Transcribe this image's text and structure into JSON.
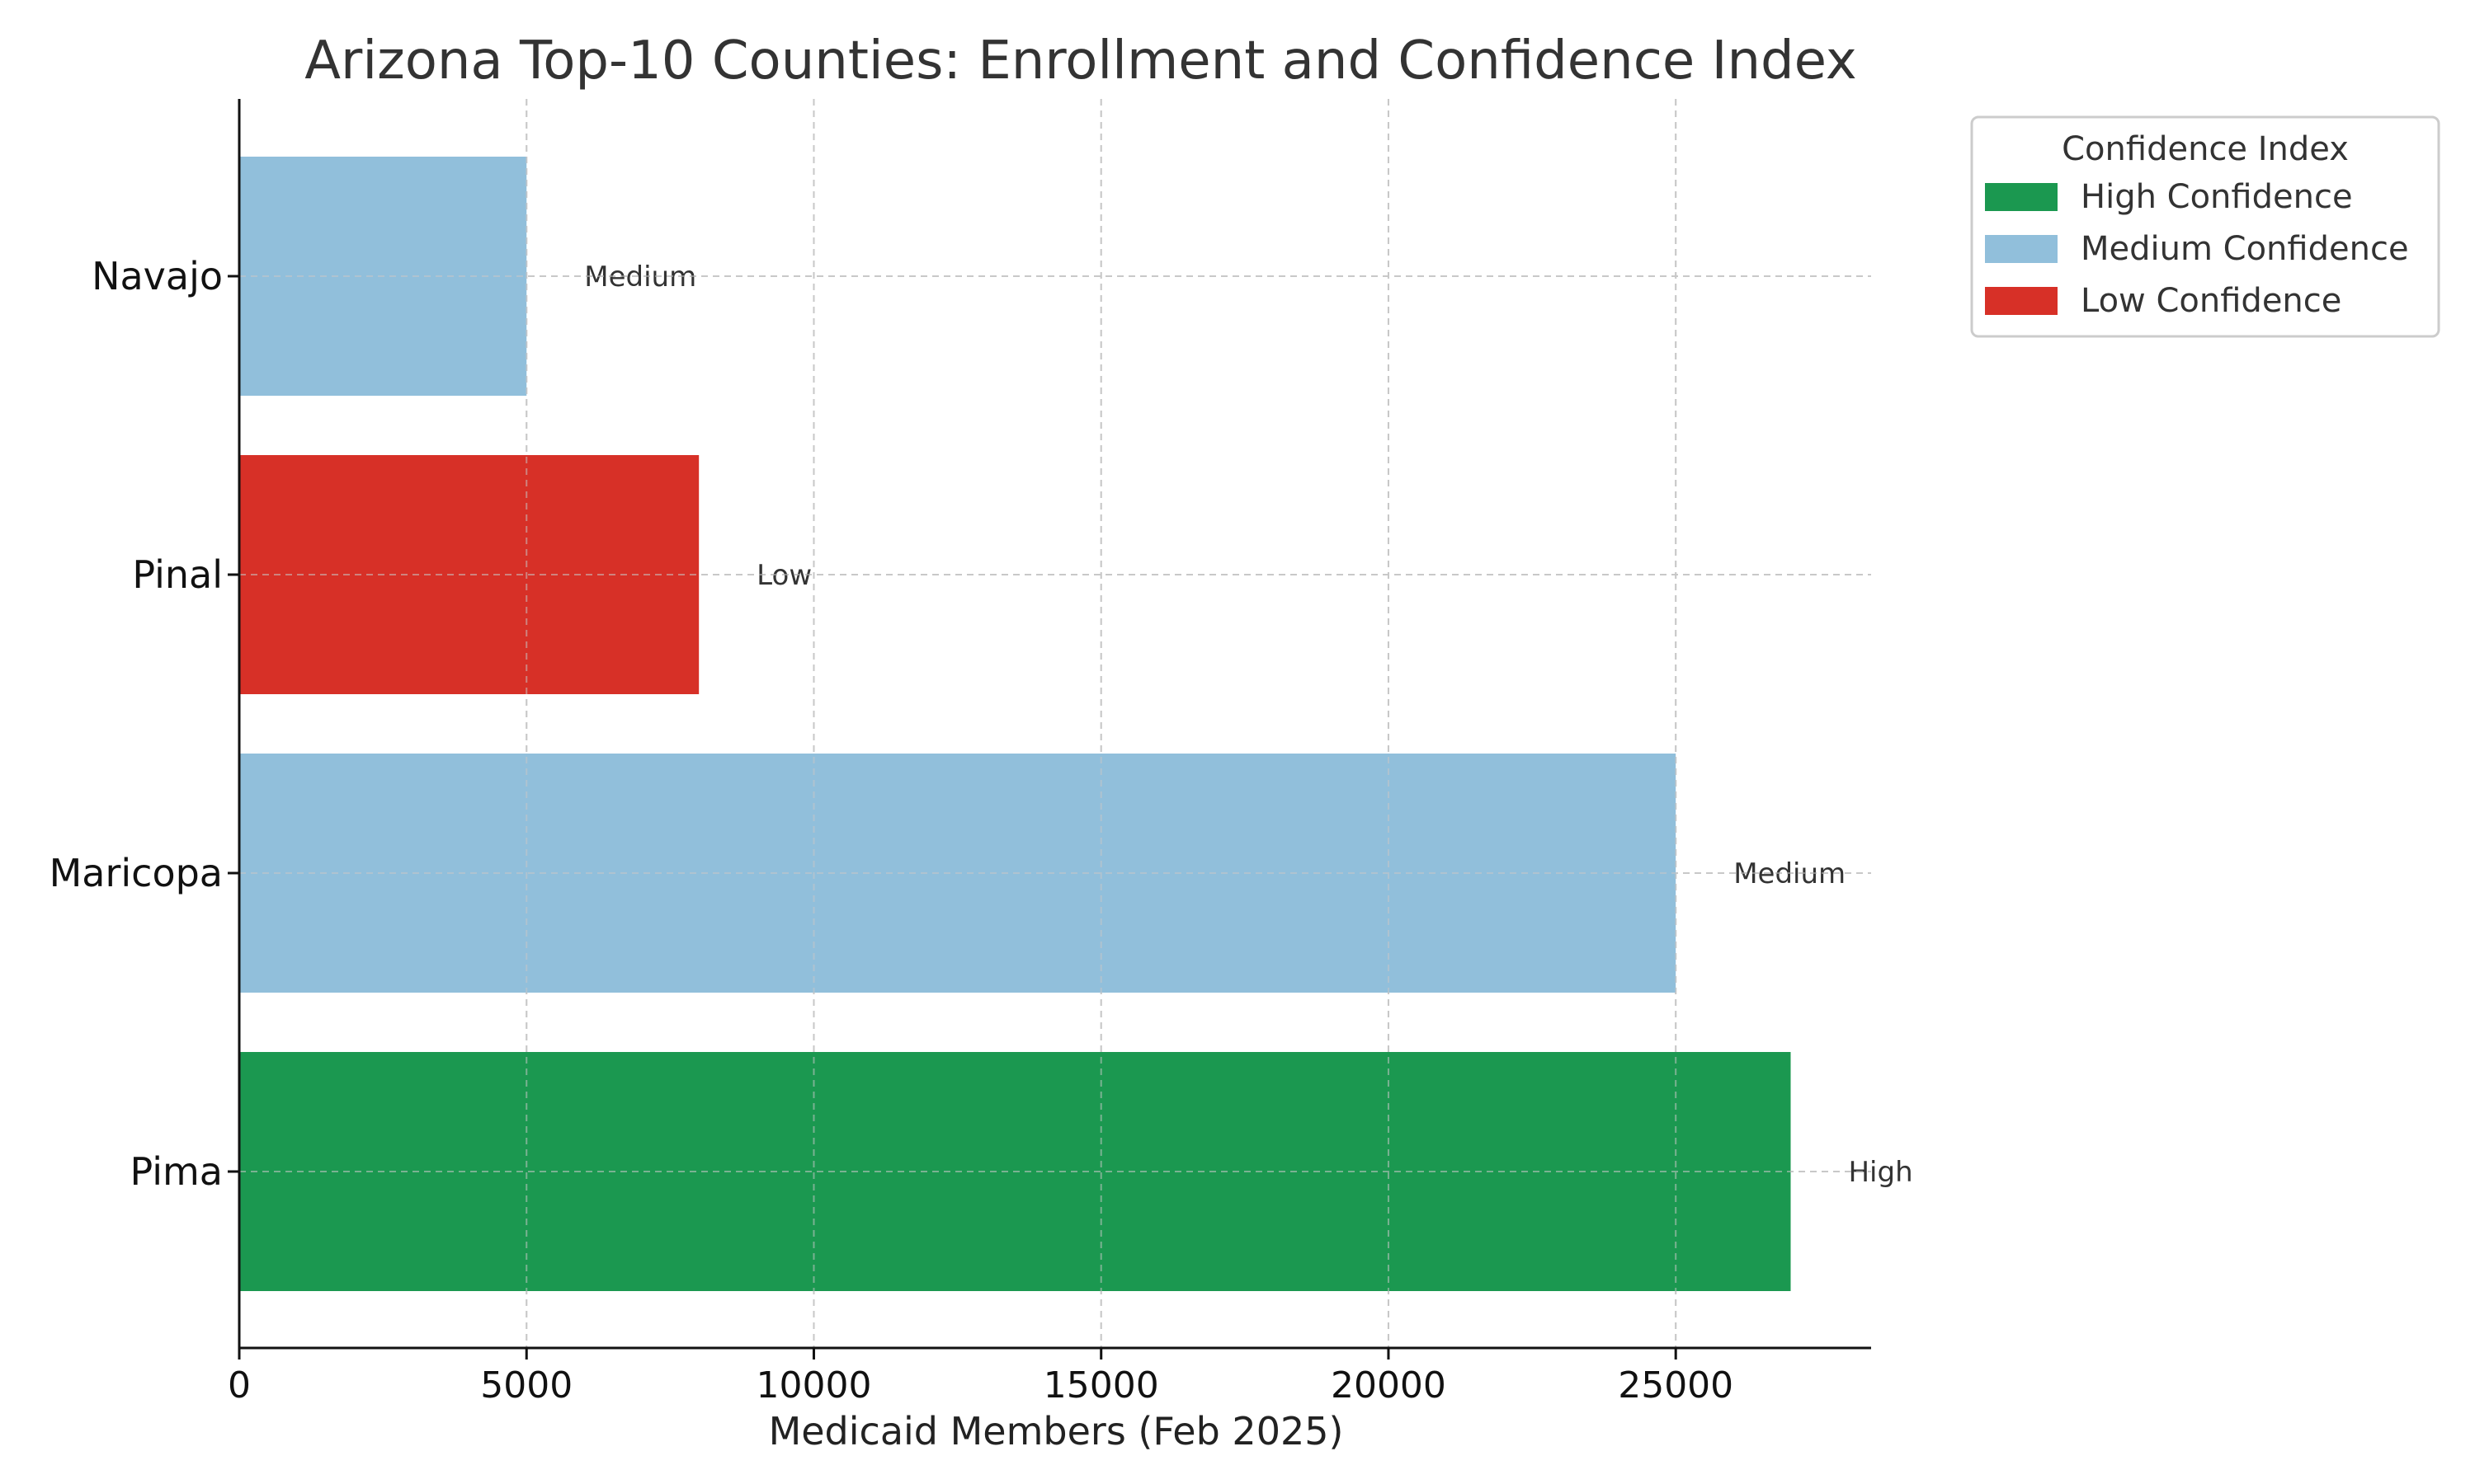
{
  "chart_data": {
    "type": "bar",
    "orientation": "horizontal",
    "title": "Arizona Top-10 Counties: Enrollment and Confidence Index",
    "xlabel": "Medicaid Members (Feb 2025)",
    "ylabel": "",
    "xlim": [
      0,
      28400
    ],
    "xticks": [
      0,
      5000,
      10000,
      15000,
      20000,
      25000
    ],
    "grid": true,
    "categories": [
      "Pima",
      "Maricopa",
      "Pinal",
      "Navajo"
    ],
    "values": [
      27000,
      25000,
      8000,
      5000
    ],
    "confidence": [
      "High",
      "Medium",
      "Low",
      "Medium"
    ],
    "bar_labels": [
      "High",
      "Medium",
      "Low",
      "Medium"
    ],
    "colors": {
      "High": "#1b9850",
      "Medium": "#91bfdb",
      "Low": "#d73027"
    },
    "legend": {
      "title": "Confidence Index",
      "placement": "outside-top-right",
      "entries": [
        {
          "key": "High",
          "label": "High Confidence"
        },
        {
          "key": "Medium",
          "label": "Medium Confidence"
        },
        {
          "key": "Low",
          "label": "Low Confidence"
        }
      ]
    }
  }
}
